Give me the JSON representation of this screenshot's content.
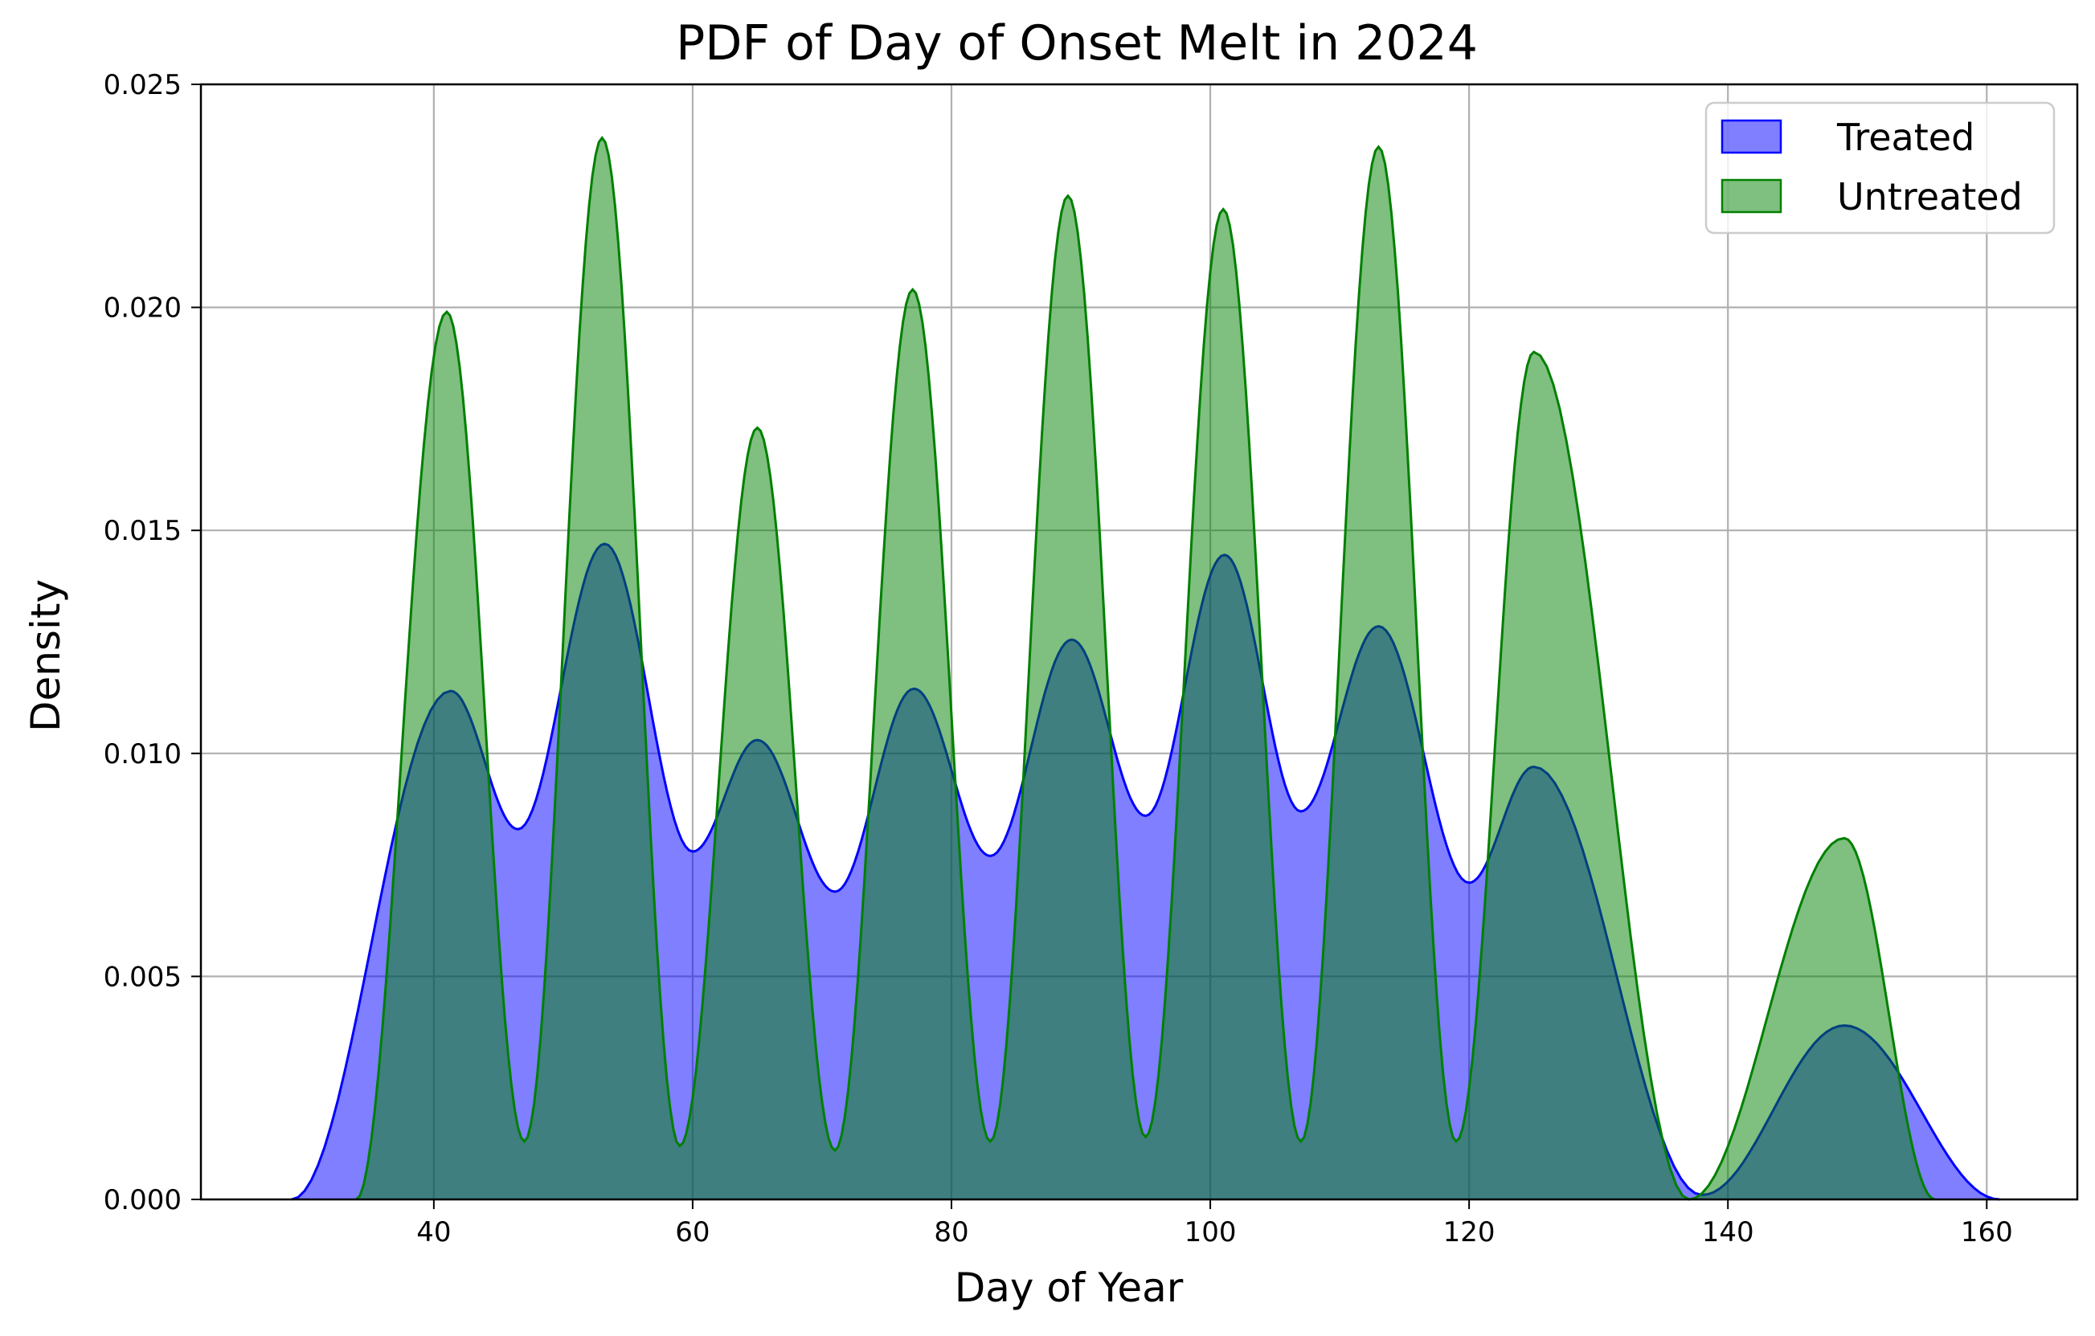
{
  "chart_data": {
    "type": "area",
    "title": "PDF of Day of Onset Melt in 2024",
    "xlabel": "Day of Year",
    "ylabel": "Density",
    "xlim": [
      22,
      167
    ],
    "ylim": [
      0,
      0.025
    ],
    "x_ticks": [
      40,
      60,
      80,
      100,
      120,
      140,
      160
    ],
    "x_tick_labels": [
      "40",
      "60",
      "80",
      "100",
      "120",
      "140",
      "160"
    ],
    "y_ticks": [
      0,
      0.005,
      0.01,
      0.015,
      0.02,
      0.025
    ],
    "y_tick_labels": [
      "0.000",
      "0.005",
      "0.010",
      "0.015",
      "0.020",
      "0.025"
    ],
    "grid": true,
    "legend_position": "top-right",
    "series": [
      {
        "name": "Treated",
        "color": "#0000ff",
        "fill_alpha": 0.5,
        "x_range": [
          29,
          161
        ],
        "peaks": [
          {
            "center": 41.3,
            "height": 0.0114
          },
          {
            "center": 53.2,
            "height": 0.0147
          },
          {
            "center": 65.0,
            "height": 0.0103
          },
          {
            "center": 77.1,
            "height": 0.01145
          },
          {
            "center": 89.3,
            "height": 0.01255
          },
          {
            "center": 101.1,
            "height": 0.01445
          },
          {
            "center": 113.0,
            "height": 0.01285
          },
          {
            "center": 125.0,
            "height": 0.0097
          },
          {
            "center": 149.0,
            "height": 0.0039
          }
        ],
        "troughs": [
          {
            "x": 46.5,
            "y": 0.0083
          },
          {
            "x": 60.0,
            "y": 0.0078
          },
          {
            "x": 71.0,
            "y": 0.0069
          },
          {
            "x": 83.0,
            "y": 0.0077
          },
          {
            "x": 95.0,
            "y": 0.0086
          },
          {
            "x": 107.0,
            "y": 0.0087
          },
          {
            "x": 120.0,
            "y": 0.0071
          },
          {
            "x": 138.0,
            "y": 0.0001
          }
        ]
      },
      {
        "name": "Untreated",
        "color": "#008000",
        "fill_alpha": 0.5,
        "x_range": [
          34,
          156
        ],
        "peaks": [
          {
            "center": 41.0,
            "height": 0.0199
          },
          {
            "center": 53.0,
            "height": 0.0238
          },
          {
            "center": 65.0,
            "height": 0.0173
          },
          {
            "center": 77.0,
            "height": 0.0204
          },
          {
            "center": 89.0,
            "height": 0.0225
          },
          {
            "center": 101.0,
            "height": 0.0222
          },
          {
            "center": 113.0,
            "height": 0.0236
          },
          {
            "center": 125.0,
            "height": 0.019
          },
          {
            "center": 149.0,
            "height": 0.0081
          }
        ],
        "troughs": [
          {
            "x": 47.0,
            "y": 0.0013
          },
          {
            "x": 59.0,
            "y": 0.0012
          },
          {
            "x": 71.0,
            "y": 0.0011
          },
          {
            "x": 83.0,
            "y": 0.0013
          },
          {
            "x": 95.0,
            "y": 0.0014
          },
          {
            "x": 107.0,
            "y": 0.0013
          },
          {
            "x": 119.0,
            "y": 0.0013
          },
          {
            "x": 137.0,
            "y": 0.0
          }
        ]
      }
    ]
  }
}
